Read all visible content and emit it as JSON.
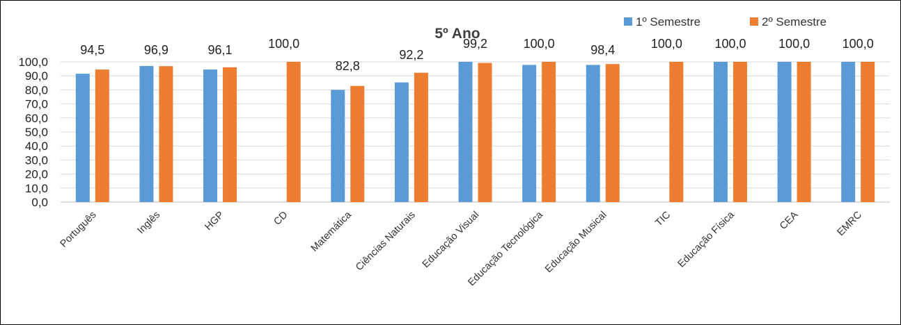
{
  "chart_data": {
    "type": "bar",
    "title": "5º Ano",
    "xlabel": "",
    "ylabel": "",
    "ylim": [
      0,
      100
    ],
    "ytick_step": 10,
    "grid": true,
    "legend_position": "top-right",
    "categories": [
      "Português",
      "Inglês",
      "HGP",
      "CD",
      "Matemática",
      "Ciências Naturais",
      "Educação Visual",
      "Educação Tecnológica",
      "Educação Musical",
      "TIC",
      "Educação Física",
      "CEA",
      "EMRC"
    ],
    "series": [
      {
        "name": "1º Semestre",
        "color": "#5B9BD5",
        "values": [
          91.5,
          97.0,
          94.5,
          null,
          80.0,
          85.3,
          100.0,
          97.8,
          97.8,
          null,
          100.0,
          100.0,
          100.0
        ],
        "show_labels": false
      },
      {
        "name": "2º Semestre",
        "color": "#ED7D31",
        "values": [
          94.5,
          96.9,
          96.1,
          100.0,
          82.8,
          92.2,
          99.2,
          100.0,
          98.4,
          100.0,
          100.0,
          100.0,
          100.0
        ],
        "labels": [
          "94,5",
          "96,9",
          "96,1",
          "100,0",
          "82,8",
          "92,2",
          "99,2",
          "100,0",
          "98,4",
          "100,0",
          "100,0",
          "100,0",
          "100,0"
        ],
        "show_labels": true
      }
    ],
    "ytick_labels": [
      "0,0",
      "10,0",
      "20,0",
      "30,0",
      "40,0",
      "50,0",
      "60,0",
      "70,0",
      "80,0",
      "90,0",
      "100,0"
    ]
  }
}
